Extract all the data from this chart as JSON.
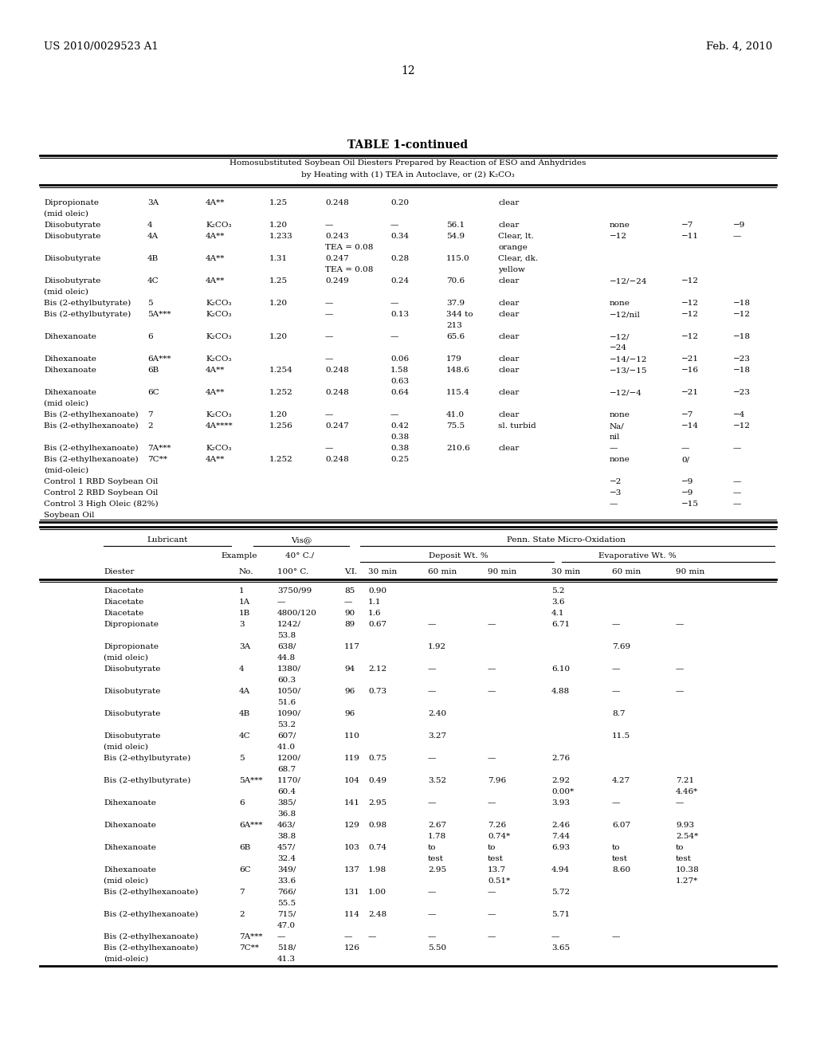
{
  "header_left": "US 2010/0029523 A1",
  "header_right": "Feb. 4, 2010",
  "page_number": "12",
  "table_title": "TABLE 1-continued",
  "table_subtitle1": "Homosubstituted Soybean Oil Diesters Prepared by Reaction of ESO and Anhydrides",
  "table_subtitle2": "by Heating with (1) TEA in Autoclave, or (2) K₂CO₃",
  "top_table_rows": [
    {
      "diester": "Dipropionate",
      "ex": "3A",
      "cat": "4A**",
      "r1": "1.25",
      "r2": "0.248",
      "r3": "0.20",
      "mw": "",
      "app": "clear",
      "p1": "",
      "p2": "",
      "p3": ""
    },
    {
      "diester": "(mid oleic)",
      "ex": "",
      "cat": "",
      "r1": "",
      "r2": "",
      "r3": "",
      "mw": "",
      "app": "",
      "p1": "",
      "p2": "",
      "p3": ""
    },
    {
      "diester": "Diisobutyrate",
      "ex": "4",
      "cat": "K₂CO₃",
      "r1": "1.20",
      "r2": "—",
      "r3": "—",
      "mw": "56.1",
      "app": "clear",
      "p1": "none",
      "p2": "−7",
      "p3": "−9"
    },
    {
      "diester": "Diisobutyrate",
      "ex": "4A",
      "cat": "4A**",
      "r1": "1.233",
      "r2": "0.243",
      "r3": "0.34",
      "mw": "54.9",
      "app": "Clear, lt.",
      "p1": "−12",
      "p2": "−11",
      "p3": "—"
    },
    {
      "diester": "",
      "ex": "",
      "cat": "",
      "r1": "",
      "r2": "TEA = 0.08",
      "r3": "",
      "mw": "",
      "app": "orange",
      "p1": "",
      "p2": "",
      "p3": ""
    },
    {
      "diester": "Diisobutyrate",
      "ex": "4B",
      "cat": "4A**",
      "r1": "1.31",
      "r2": "0.247",
      "r3": "0.28",
      "mw": "115.0",
      "app": "Clear, dk.",
      "p1": "",
      "p2": "",
      "p3": ""
    },
    {
      "diester": "",
      "ex": "",
      "cat": "",
      "r1": "",
      "r2": "TEA = 0.08",
      "r3": "",
      "mw": "",
      "app": "yellow",
      "p1": "",
      "p2": "",
      "p3": ""
    },
    {
      "diester": "Diisobutyrate",
      "ex": "4C",
      "cat": "4A**",
      "r1": "1.25",
      "r2": "0.249",
      "r3": "0.24",
      "mw": "70.6",
      "app": "clear",
      "p1": "−12/−24",
      "p2": "−12",
      "p3": ""
    },
    {
      "diester": "(mid oleic)",
      "ex": "",
      "cat": "",
      "r1": "",
      "r2": "",
      "r3": "",
      "mw": "",
      "app": "",
      "p1": "",
      "p2": "",
      "p3": ""
    },
    {
      "diester": "Bis (2-ethylbutyrate)",
      "ex": "5",
      "cat": "K₂CO₃",
      "r1": "1.20",
      "r2": "—",
      "r3": "—",
      "mw": "37.9",
      "app": "clear",
      "p1": "none",
      "p2": "−12",
      "p3": "−18"
    },
    {
      "diester": "Bis (2-ethylbutyrate)",
      "ex": "5A***",
      "cat": "K₂CO₃",
      "r1": "",
      "r2": "—",
      "r3": "0.13",
      "mw": "344 to",
      "app": "clear",
      "p1": "−12/nil",
      "p2": "−12",
      "p3": "−12"
    },
    {
      "diester": "",
      "ex": "",
      "cat": "",
      "r1": "",
      "r2": "",
      "r3": "",
      "mw": "213",
      "app": "",
      "p1": "",
      "p2": "",
      "p3": ""
    },
    {
      "diester": "Dihexanoate",
      "ex": "6",
      "cat": "K₂CO₃",
      "r1": "1.20",
      "r2": "—",
      "r3": "—",
      "mw": "65.6",
      "app": "clear",
      "p1": "−12/",
      "p2": "−12",
      "p3": "−18"
    },
    {
      "diester": "",
      "ex": "",
      "cat": "",
      "r1": "",
      "r2": "",
      "r3": "",
      "mw": "",
      "app": "",
      "p1": "−24",
      "p2": "",
      "p3": ""
    },
    {
      "diester": "Dihexanoate",
      "ex": "6A***",
      "cat": "K₂CO₃",
      "r1": "",
      "r2": "—",
      "r3": "0.06",
      "mw": "179",
      "app": "clear",
      "p1": "−14/−12",
      "p2": "−21",
      "p3": "−23"
    },
    {
      "diester": "Dihexanoate",
      "ex": "6B",
      "cat": "4A**",
      "r1": "1.254",
      "r2": "0.248",
      "r3": "1.58",
      "mw": "148.6",
      "app": "clear",
      "p1": "−13/−15",
      "p2": "−16",
      "p3": "−18"
    },
    {
      "diester": "",
      "ex": "",
      "cat": "",
      "r1": "",
      "r2": "",
      "r3": "0.63",
      "mw": "",
      "app": "",
      "p1": "",
      "p2": "",
      "p3": ""
    },
    {
      "diester": "Dihexanoate",
      "ex": "6C",
      "cat": "4A**",
      "r1": "1.252",
      "r2": "0.248",
      "r3": "0.64",
      "mw": "115.4",
      "app": "clear",
      "p1": "−12/−4",
      "p2": "−21",
      "p3": "−23"
    },
    {
      "diester": "(mid oleic)",
      "ex": "",
      "cat": "",
      "r1": "",
      "r2": "",
      "r3": "",
      "mw": "",
      "app": "",
      "p1": "",
      "p2": "",
      "p3": ""
    },
    {
      "diester": "Bis (2-ethylhexanoate)",
      "ex": "7",
      "cat": "K₂CO₃",
      "r1": "1.20",
      "r2": "—",
      "r3": "—",
      "mw": "41.0",
      "app": "clear",
      "p1": "none",
      "p2": "−7",
      "p3": "−4"
    },
    {
      "diester": "Bis (2-ethylhexanoate)",
      "ex": "2",
      "cat": "4A****",
      "r1": "1.256",
      "r2": "0.247",
      "r3": "0.42",
      "mw": "75.5",
      "app": "sl. turbid",
      "p1": "Na/",
      "p2": "−14",
      "p3": "−12"
    },
    {
      "diester": "",
      "ex": "",
      "cat": "",
      "r1": "",
      "r2": "",
      "r3": "0.38",
      "mw": "",
      "app": "",
      "p1": "nil",
      "p2": "",
      "p3": ""
    },
    {
      "diester": "Bis (2-ethylhexanoate)",
      "ex": "7A***",
      "cat": "K₂CO₃",
      "r1": "",
      "r2": "—",
      "r3": "0.38",
      "mw": "210.6",
      "app": "clear",
      "p1": "—",
      "p2": "—",
      "p3": "—"
    },
    {
      "diester": "Bis (2-ethylhexanoate)",
      "ex": "7C**",
      "cat": "4A**",
      "r1": "1.252",
      "r2": "0.248",
      "r3": "0.25",
      "mw": "",
      "app": "",
      "p1": "none",
      "p2": "0/",
      "p3": ""
    },
    {
      "diester": "(mid-oleic)",
      "ex": "",
      "cat": "",
      "r1": "",
      "r2": "",
      "r3": "",
      "mw": "",
      "app": "",
      "p1": "",
      "p2": "",
      "p3": ""
    },
    {
      "diester": "Control 1 RBD Soybean Oil",
      "ex": "",
      "cat": "",
      "r1": "",
      "r2": "",
      "r3": "",
      "mw": "",
      "app": "",
      "p1": "−2",
      "p2": "−9",
      "p3": "—"
    },
    {
      "diester": "Control 2 RBD Soybean Oil",
      "ex": "",
      "cat": "",
      "r1": "",
      "r2": "",
      "r3": "",
      "mw": "",
      "app": "",
      "p1": "−3",
      "p2": "−9",
      "p3": "—"
    },
    {
      "diester": "Control 3 High Oleic (82%)",
      "ex": "",
      "cat": "",
      "r1": "",
      "r2": "",
      "r3": "",
      "mw": "",
      "app": "",
      "p1": "—",
      "p2": "−15",
      "p3": "—"
    },
    {
      "diester": "Soybean Oil",
      "ex": "",
      "cat": "",
      "r1": "",
      "r2": "",
      "r3": "",
      "mw": "",
      "app": "",
      "p1": "",
      "p2": "",
      "p3": ""
    }
  ],
  "bottom_table_rows": [
    {
      "diester": "Diacetate",
      "ex": "1",
      "vis": "3750/99",
      "vi": "85",
      "d30": "0.90",
      "d60": "",
      "d90": "",
      "e30": "5.2",
      "e60": "",
      "e90": ""
    },
    {
      "diester": "Diacetate",
      "ex": "1A",
      "vis": "—",
      "vi": "—",
      "d30": "1.1",
      "d60": "",
      "d90": "",
      "e30": "3.6",
      "e60": "",
      "e90": ""
    },
    {
      "diester": "Diacetate",
      "ex": "1B",
      "vis": "4800/120",
      "vi": "90",
      "d30": "1.6",
      "d60": "",
      "d90": "",
      "e30": "4.1",
      "e60": "",
      "e90": ""
    },
    {
      "diester": "Dipropionate",
      "ex": "3",
      "vis": "1242/",
      "vi": "89",
      "d30": "0.67",
      "d60": "—",
      "d90": "—",
      "e30": "6.71",
      "e60": "—",
      "e90": "—"
    },
    {
      "diester": "",
      "ex": "",
      "vis": "53.8",
      "vi": "",
      "d30": "",
      "d60": "",
      "d90": "",
      "e30": "",
      "e60": "",
      "e90": ""
    },
    {
      "diester": "Dipropionate",
      "ex": "3A",
      "vis": "638/",
      "vi": "117",
      "d30": "",
      "d60": "1.92",
      "d90": "",
      "e30": "",
      "e60": "7.69",
      "e90": ""
    },
    {
      "diester": "(mid oleic)",
      "ex": "",
      "vis": "44.8",
      "vi": "",
      "d30": "",
      "d60": "",
      "d90": "",
      "e30": "",
      "e60": "",
      "e90": ""
    },
    {
      "diester": "Diisobutyrate",
      "ex": "4",
      "vis": "1380/",
      "vi": "94",
      "d30": "2.12",
      "d60": "—",
      "d90": "—",
      "e30": "6.10",
      "e60": "—",
      "e90": "—"
    },
    {
      "diester": "",
      "ex": "",
      "vis": "60.3",
      "vi": "",
      "d30": "",
      "d60": "",
      "d90": "",
      "e30": "",
      "e60": "",
      "e90": ""
    },
    {
      "diester": "Diisobutyrate",
      "ex": "4A",
      "vis": "1050/",
      "vi": "96",
      "d30": "0.73",
      "d60": "—",
      "d90": "—",
      "e30": "4.88",
      "e60": "—",
      "e90": "—"
    },
    {
      "diester": "",
      "ex": "",
      "vis": "51.6",
      "vi": "",
      "d30": "",
      "d60": "",
      "d90": "",
      "e30": "",
      "e60": "",
      "e90": ""
    },
    {
      "diester": "Diisobutyrate",
      "ex": "4B",
      "vis": "1090/",
      "vi": "96",
      "d30": "",
      "d60": "2.40",
      "d90": "",
      "e30": "",
      "e60": "8.7",
      "e90": ""
    },
    {
      "diester": "",
      "ex": "",
      "vis": "53.2",
      "vi": "",
      "d30": "",
      "d60": "",
      "d90": "",
      "e30": "",
      "e60": "",
      "e90": ""
    },
    {
      "diester": "Diisobutyrate",
      "ex": "4C",
      "vis": "607/",
      "vi": "110",
      "d30": "",
      "d60": "3.27",
      "d90": "",
      "e30": "",
      "e60": "11.5",
      "e90": ""
    },
    {
      "diester": "(mid oleic)",
      "ex": "",
      "vis": "41.0",
      "vi": "",
      "d30": "",
      "d60": "",
      "d90": "",
      "e30": "",
      "e60": "",
      "e90": ""
    },
    {
      "diester": "Bis (2-ethylbutyrate)",
      "ex": "5",
      "vis": "1200/",
      "vi": "119",
      "d30": "0.75",
      "d60": "—",
      "d90": "—",
      "e30": "2.76",
      "e60": "",
      "e90": ""
    },
    {
      "diester": "",
      "ex": "",
      "vis": "68.7",
      "vi": "",
      "d30": "",
      "d60": "",
      "d90": "",
      "e30": "",
      "e60": "",
      "e90": ""
    },
    {
      "diester": "Bis (2-ethylbutyrate)",
      "ex": "5A***",
      "vis": "1170/",
      "vi": "104",
      "d30": "0.49",
      "d60": "3.52",
      "d90": "7.96",
      "e30": "2.92",
      "e60": "4.27",
      "e90": "7.21"
    },
    {
      "diester": "",
      "ex": "",
      "vis": "60.4",
      "vi": "",
      "d30": "",
      "d60": "",
      "d90": "",
      "e30": "0.00*",
      "e60": "",
      "e90": "4.46*"
    },
    {
      "diester": "Dihexanoate",
      "ex": "6",
      "vis": "385/",
      "vi": "141",
      "d30": "2.95",
      "d60": "—",
      "d90": "—",
      "e30": "3.93",
      "e60": "—",
      "e90": "—"
    },
    {
      "diester": "",
      "ex": "",
      "vis": "36.8",
      "vi": "",
      "d30": "",
      "d60": "",
      "d90": "",
      "e30": "",
      "e60": "",
      "e90": ""
    },
    {
      "diester": "Dihexanoate",
      "ex": "6A***",
      "vis": "463/",
      "vi": "129",
      "d30": "0.98",
      "d60": "2.67",
      "d90": "7.26",
      "e30": "2.46",
      "e60": "6.07",
      "e90": "9.93"
    },
    {
      "diester": "",
      "ex": "",
      "vis": "38.8",
      "vi": "",
      "d30": "",
      "d60": "1.78",
      "d90": "0.74*",
      "e30": "7.44",
      "e60": "",
      "e90": "2.54*"
    },
    {
      "diester": "Dihexanoate",
      "ex": "6B",
      "vis": "457/",
      "vi": "103",
      "d30": "0.74",
      "d60": "to",
      "d90": "to",
      "e30": "6.93",
      "e60": "to",
      "e90": "to"
    },
    {
      "diester": "",
      "ex": "",
      "vis": "32.4",
      "vi": "",
      "d30": "",
      "d60": "test",
      "d90": "test",
      "e30": "",
      "e60": "test",
      "e90": "test"
    },
    {
      "diester": "Dihexanoate",
      "ex": "6C",
      "vis": "349/",
      "vi": "137",
      "d30": "1.98",
      "d60": "2.95",
      "d90": "13.7",
      "e30": "4.94",
      "e60": "8.60",
      "e90": "10.38"
    },
    {
      "diester": "(mid oleic)",
      "ex": "",
      "vis": "33.6",
      "vi": "",
      "d30": "",
      "d60": "",
      "d90": "0.51*",
      "e30": "",
      "e60": "",
      "e90": "1.27*"
    },
    {
      "diester": "Bis (2-ethylhexanoate)",
      "ex": "7",
      "vis": "766/",
      "vi": "131",
      "d30": "1.00",
      "d60": "—",
      "d90": "—",
      "e30": "5.72",
      "e60": "",
      "e90": ""
    },
    {
      "diester": "",
      "ex": "",
      "vis": "55.5",
      "vi": "",
      "d30": "",
      "d60": "",
      "d90": "",
      "e30": "",
      "e60": "",
      "e90": ""
    },
    {
      "diester": "Bis (2-ethylhexanoate)",
      "ex": "2",
      "vis": "715/",
      "vi": "114",
      "d30": "2.48",
      "d60": "—",
      "d90": "—",
      "e30": "5.71",
      "e60": "",
      "e90": ""
    },
    {
      "diester": "",
      "ex": "",
      "vis": "47.0",
      "vi": "",
      "d30": "",
      "d60": "",
      "d90": "",
      "e30": "",
      "e60": "",
      "e90": ""
    },
    {
      "diester": "Bis (2-ethylhexanoate)",
      "ex": "7A***",
      "vis": "—",
      "vi": "—",
      "d30": "—",
      "d60": "—",
      "d90": "—",
      "e30": "—",
      "e60": "—",
      "e90": ""
    },
    {
      "diester": "Bis (2-ethylhexanoate)",
      "ex": "7C**",
      "vis": "518/",
      "vi": "126",
      "d30": "",
      "d60": "5.50",
      "d90": "",
      "e30": "3.65",
      "e60": "",
      "e90": ""
    },
    {
      "diester": "(mid-oleic)",
      "ex": "",
      "vis": "41.3",
      "vi": "",
      "d30": "",
      "d60": "",
      "d90": "",
      "e30": "",
      "e60": "",
      "e90": ""
    }
  ]
}
